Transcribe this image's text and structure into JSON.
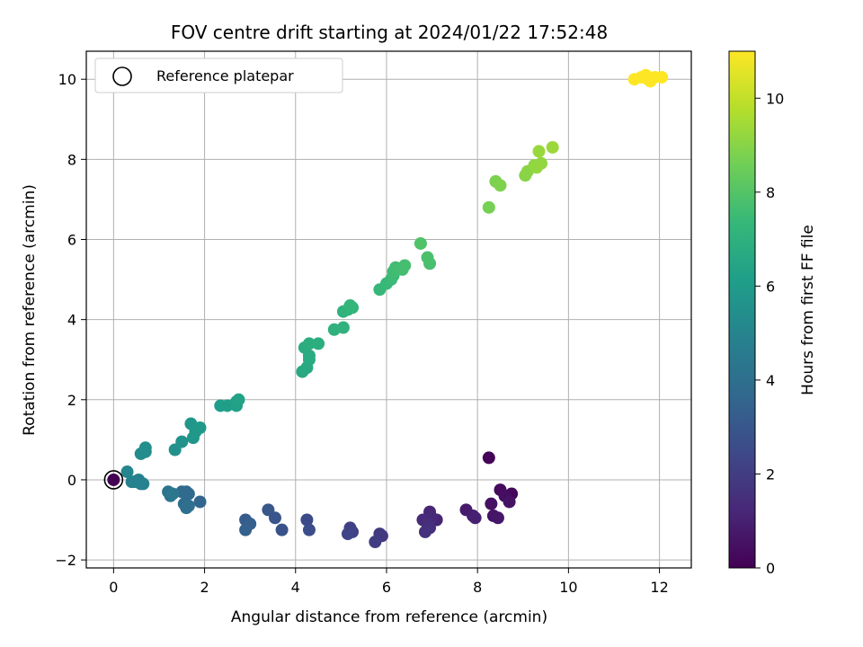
{
  "chart_data": {
    "type": "scatter",
    "title": "FOV centre drift starting at 2024/01/22 17:52:48",
    "xlabel": "Angular distance from reference (arcmin)",
    "ylabel": "Rotation from reference (arcmin)",
    "colorbar_label": "Hours from first FF file",
    "xlim": [
      -0.6,
      12.7
    ],
    "ylim": [
      -2.2,
      10.7
    ],
    "xticks": [
      0,
      2,
      4,
      6,
      8,
      10,
      12
    ],
    "yticks": [
      -2,
      0,
      2,
      4,
      6,
      8,
      10
    ],
    "colorbar_range": [
      0,
      11
    ],
    "colorbar_ticks": [
      0,
      2,
      4,
      6,
      8,
      10
    ],
    "colormap": "viridis",
    "grid": true,
    "legend": {
      "position": "top-left",
      "entries": [
        "Reference platepar"
      ]
    },
    "reference_point": {
      "x": 0,
      "y": 0
    },
    "points": [
      [
        0.0,
        0.0,
        0.0
      ],
      [
        8.25,
        0.55,
        0.1
      ],
      [
        8.75,
        -0.35,
        0.2
      ],
      [
        8.5,
        -0.25,
        0.3
      ],
      [
        8.6,
        -0.4,
        0.4
      ],
      [
        8.3,
        -0.6,
        0.5
      ],
      [
        8.7,
        -0.55,
        0.55
      ],
      [
        8.35,
        -0.9,
        0.6
      ],
      [
        8.45,
        -0.95,
        0.7
      ],
      [
        7.75,
        -0.75,
        0.8
      ],
      [
        7.9,
        -0.9,
        0.9
      ],
      [
        7.95,
        -0.95,
        1.0
      ],
      [
        7.1,
        -1.0,
        1.1
      ],
      [
        6.95,
        -0.8,
        1.2
      ],
      [
        7.0,
        -0.95,
        1.25
      ],
      [
        6.8,
        -1.0,
        1.3
      ],
      [
        6.9,
        -1.1,
        1.4
      ],
      [
        6.95,
        -1.2,
        1.5
      ],
      [
        6.85,
        -1.3,
        1.6
      ],
      [
        5.85,
        -1.35,
        1.8
      ],
      [
        5.9,
        -1.4,
        1.9
      ],
      [
        5.75,
        -1.55,
        2.0
      ],
      [
        5.2,
        -1.2,
        2.1
      ],
      [
        5.25,
        -1.3,
        2.2
      ],
      [
        5.15,
        -1.35,
        2.3
      ],
      [
        4.25,
        -1.0,
        2.5
      ],
      [
        4.3,
        -1.25,
        2.6
      ],
      [
        3.7,
        -1.25,
        2.8
      ],
      [
        3.55,
        -0.95,
        2.9
      ],
      [
        3.4,
        -0.75,
        3.0
      ],
      [
        2.9,
        -1.0,
        3.2
      ],
      [
        3.0,
        -1.1,
        3.3
      ],
      [
        2.9,
        -1.25,
        3.4
      ],
      [
        1.9,
        -0.55,
        3.6
      ],
      [
        1.6,
        -0.3,
        3.7
      ],
      [
        1.65,
        -0.35,
        3.75
      ],
      [
        1.5,
        -0.3,
        3.8
      ],
      [
        1.55,
        -0.6,
        3.9
      ],
      [
        1.6,
        -0.7,
        4.0
      ],
      [
        1.65,
        -0.65,
        4.05
      ],
      [
        1.2,
        -0.3,
        4.2
      ],
      [
        1.25,
        -0.4,
        4.3
      ],
      [
        1.3,
        -0.35,
        4.35
      ],
      [
        0.6,
        -0.1,
        4.6
      ],
      [
        0.55,
        0.0,
        4.7
      ],
      [
        0.45,
        -0.05,
        4.8
      ],
      [
        0.4,
        -0.05,
        4.85
      ],
      [
        0.65,
        -0.1,
        4.9
      ],
      [
        0.3,
        0.2,
        5.0
      ],
      [
        0.6,
        0.65,
        5.3
      ],
      [
        0.7,
        0.7,
        5.35
      ],
      [
        0.7,
        0.8,
        5.4
      ],
      [
        1.35,
        0.75,
        5.5
      ],
      [
        1.5,
        0.95,
        5.6
      ],
      [
        1.7,
        1.4,
        5.75
      ],
      [
        1.75,
        1.05,
        5.8
      ],
      [
        1.8,
        1.2,
        5.85
      ],
      [
        1.9,
        1.3,
        5.9
      ],
      [
        2.35,
        1.85,
        6.1
      ],
      [
        2.5,
        1.85,
        6.15
      ],
      [
        2.7,
        1.85,
        6.2
      ],
      [
        2.7,
        1.95,
        6.25
      ],
      [
        2.75,
        2.0,
        6.3
      ],
      [
        4.15,
        2.7,
        6.6
      ],
      [
        4.25,
        2.8,
        6.65
      ],
      [
        4.3,
        3.0,
        6.7
      ],
      [
        4.3,
        3.1,
        6.75
      ],
      [
        4.2,
        3.3,
        6.8
      ],
      [
        4.3,
        3.4,
        6.85
      ],
      [
        4.5,
        3.4,
        6.9
      ],
      [
        4.85,
        3.75,
        7.0
      ],
      [
        5.05,
        3.8,
        7.05
      ],
      [
        5.05,
        4.2,
        7.1
      ],
      [
        5.15,
        4.25,
        7.15
      ],
      [
        5.25,
        4.3,
        7.2
      ],
      [
        5.2,
        4.35,
        7.25
      ],
      [
        5.85,
        4.75,
        7.35
      ],
      [
        6.0,
        4.9,
        7.4
      ],
      [
        6.1,
        5.0,
        7.45
      ],
      [
        6.15,
        5.1,
        7.5
      ],
      [
        6.15,
        5.2,
        7.55
      ],
      [
        6.2,
        5.3,
        7.6
      ],
      [
        6.35,
        5.25,
        7.65
      ],
      [
        6.4,
        5.35,
        7.7
      ],
      [
        6.95,
        5.4,
        7.75
      ],
      [
        6.9,
        5.55,
        7.8
      ],
      [
        6.75,
        5.9,
        7.9
      ],
      [
        8.25,
        6.8,
        8.7
      ],
      [
        8.4,
        7.45,
        8.8
      ],
      [
        8.5,
        7.35,
        8.85
      ],
      [
        9.05,
        7.6,
        9.0
      ],
      [
        9.1,
        7.7,
        9.05
      ],
      [
        9.25,
        7.85,
        9.1
      ],
      [
        9.4,
        7.9,
        9.15
      ],
      [
        9.3,
        7.8,
        9.2
      ],
      [
        9.35,
        8.2,
        9.3
      ],
      [
        9.65,
        8.3,
        9.35
      ],
      [
        11.45,
        10.0,
        11.0
      ],
      [
        11.6,
        10.05,
        11.0
      ],
      [
        11.7,
        10.1,
        11.0
      ],
      [
        11.75,
        10.0,
        11.0
      ],
      [
        11.8,
        9.95,
        11.0
      ],
      [
        11.9,
        10.05,
        11.0
      ],
      [
        12.05,
        10.05,
        11.0
      ]
    ]
  }
}
